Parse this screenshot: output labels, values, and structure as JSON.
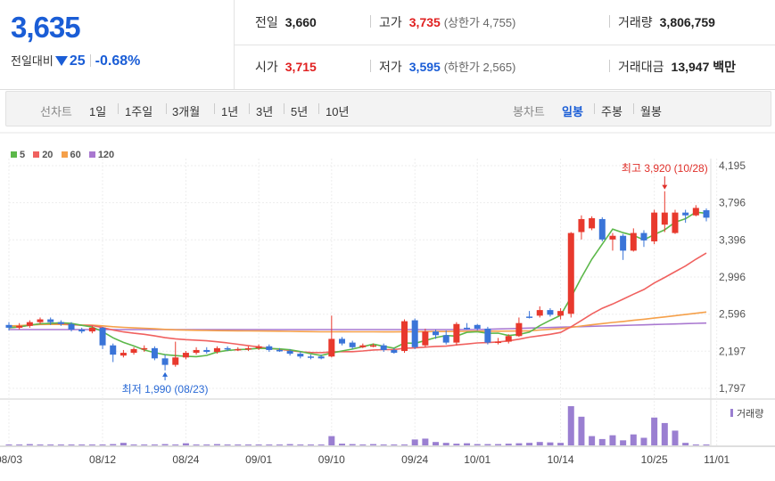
{
  "quote": {
    "price": "3,635",
    "change_label": "전일대비",
    "change_amount": "25",
    "change_pct": "-0.68%",
    "prev_close_label": "전일",
    "prev_close": "3,660",
    "high_label": "고가",
    "high": "3,735",
    "upper_limit_text": "(상한가 4,755)",
    "volume_label": "거래량",
    "volume": "3,806,759",
    "open_label": "시가",
    "open": "3,715",
    "low_label": "저가",
    "low": "3,595",
    "lower_limit_text": "(하한가 2,565)",
    "amount_label": "거래대금",
    "amount": "13,947",
    "amount_unit": "백만"
  },
  "periods": {
    "line_label": "선차트",
    "line_items": [
      "1일",
      "1주일",
      "3개월",
      "1년",
      "3년",
      "5년",
      "10년"
    ],
    "candle_label": "봉차트",
    "candle_items": [
      "일봉",
      "주봉",
      "월봉"
    ],
    "active_candle": "일봉"
  },
  "colors": {
    "up": "#e8392d",
    "down": "#3a74d8",
    "ma5": "#5cb84a",
    "ma20": "#f0615f",
    "ma60": "#f5a04a",
    "ma120": "#a978d0",
    "volume": "#9a7fd1"
  },
  "chart_data": {
    "type": "candlestick",
    "legend": [
      {
        "name": "5",
        "color": "#5cb84a"
      },
      {
        "name": "20",
        "color": "#f0615f"
      },
      {
        "name": "60",
        "color": "#f5a04a"
      },
      {
        "name": "120",
        "color": "#a978d0"
      }
    ],
    "ylim": [
      1797,
      4195
    ],
    "y_ticks": [
      "4,195",
      "3,796",
      "3,396",
      "2,996",
      "2,596",
      "2,197",
      "1,797"
    ],
    "x_ticks": [
      "08/03",
      "08/12",
      "08/24",
      "09/01",
      "09/10",
      "09/24",
      "10/01",
      "10/14",
      "10/25",
      "11/01"
    ],
    "x_tick_index": [
      0,
      9,
      17,
      24,
      31,
      39,
      45,
      53,
      62,
      68
    ],
    "annotations": {
      "high_text": "최고 3,920 (10/28)",
      "low_text": "최저 1,990 (08/23)"
    },
    "volume_label": "거래량",
    "candles": [
      [
        2480,
        2450,
        2510,
        2420
      ],
      [
        2450,
        2470,
        2500,
        2430
      ],
      [
        2470,
        2510,
        2530,
        2450
      ],
      [
        2510,
        2540,
        2560,
        2490
      ],
      [
        2540,
        2510,
        2560,
        2480
      ],
      [
        2510,
        2490,
        2530,
        2470
      ],
      [
        2490,
        2430,
        2510,
        2410
      ],
      [
        2430,
        2410,
        2450,
        2390
      ],
      [
        2410,
        2450,
        2470,
        2390
      ],
      [
        2450,
        2260,
        2460,
        2220
      ],
      [
        2260,
        2160,
        2280,
        2080
      ],
      [
        2150,
        2180,
        2210,
        2130
      ],
      [
        2180,
        2220,
        2240,
        2160
      ],
      [
        2220,
        2230,
        2260,
        2190
      ],
      [
        2230,
        2120,
        2250,
        2100
      ],
      [
        2120,
        2050,
        2160,
        1990
      ],
      [
        2050,
        2130,
        2300,
        2030
      ],
      [
        2130,
        2180,
        2200,
        2110
      ],
      [
        2180,
        2210,
        2240,
        2160
      ],
      [
        2210,
        2190,
        2240,
        2170
      ],
      [
        2190,
        2230,
        2250,
        2170
      ],
      [
        2230,
        2220,
        2250,
        2200
      ],
      [
        2220,
        2220,
        2240,
        2200
      ],
      [
        2220,
        2230,
        2250,
        2200
      ],
      [
        2230,
        2250,
        2270,
        2210
      ],
      [
        2250,
        2210,
        2270,
        2190
      ],
      [
        2210,
        2200,
        2230,
        2190
      ],
      [
        2200,
        2170,
        2220,
        2150
      ],
      [
        2170,
        2140,
        2190,
        2120
      ],
      [
        2140,
        2130,
        2160,
        2110
      ],
      [
        2140,
        2120,
        2160,
        2110
      ],
      [
        2140,
        2330,
        2580,
        2130
      ],
      [
        2330,
        2280,
        2350,
        2260
      ],
      [
        2290,
        2240,
        2310,
        2220
      ],
      [
        2240,
        2260,
        2280,
        2230
      ],
      [
        2260,
        2260,
        2280,
        2240
      ],
      [
        2260,
        2210,
        2280,
        2190
      ],
      [
        2210,
        2180,
        2230,
        2170
      ],
      [
        2200,
        2520,
        2540,
        2180
      ],
      [
        2530,
        2240,
        2550,
        2220
      ],
      [
        2260,
        2410,
        2440,
        2240
      ],
      [
        2410,
        2370,
        2430,
        2330
      ],
      [
        2370,
        2290,
        2420,
        2270
      ],
      [
        2290,
        2490,
        2510,
        2260
      ],
      [
        2450,
        2440,
        2500,
        2430
      ],
      [
        2480,
        2440,
        2490,
        2420
      ],
      [
        2440,
        2290,
        2460,
        2270
      ],
      [
        2290,
        2300,
        2340,
        2270
      ],
      [
        2300,
        2360,
        2380,
        2280
      ],
      [
        2360,
        2500,
        2560,
        2350
      ],
      [
        2570,
        2560,
        2630,
        2550
      ],
      [
        2580,
        2640,
        2680,
        2560
      ],
      [
        2640,
        2590,
        2660,
        2570
      ],
      [
        2580,
        2630,
        2660,
        2540
      ],
      [
        2600,
        3470,
        3480,
        2560
      ],
      [
        3480,
        3620,
        3660,
        3400
      ],
      [
        3520,
        3630,
        3650,
        3500
      ],
      [
        3620,
        3400,
        3640,
        3380
      ],
      [
        3400,
        3440,
        3470,
        3280
      ],
      [
        3440,
        3280,
        3460,
        3180
      ],
      [
        3280,
        3470,
        3520,
        3270
      ],
      [
        3470,
        3390,
        3500,
        3320
      ],
      [
        3380,
        3690,
        3720,
        3350
      ],
      [
        3560,
        3690,
        3920,
        3480
      ],
      [
        3470,
        3690,
        3720,
        3460
      ],
      [
        3690,
        3660,
        3720,
        3580
      ],
      [
        3660,
        3740,
        3770,
        3650
      ],
      [
        3715,
        3635,
        3735,
        3595
      ]
    ],
    "volumes": [
      2,
      1,
      3,
      1,
      1,
      2,
      1,
      2,
      1,
      2,
      3,
      6,
      2,
      1,
      2,
      3,
      2,
      5,
      2,
      2,
      3,
      2,
      2,
      2,
      2,
      2,
      2,
      3,
      2,
      2,
      1,
      22,
      4,
      3,
      2,
      3,
      2,
      2,
      2,
      14,
      16,
      8,
      6,
      4,
      5,
      3,
      3,
      3,
      4,
      5,
      6,
      8,
      7,
      6,
      93,
      68,
      22,
      15,
      24,
      12,
      26,
      18,
      66,
      53,
      35,
      6,
      2,
      2
    ]
  }
}
